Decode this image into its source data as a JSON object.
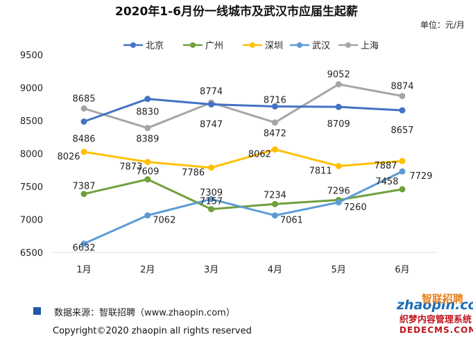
{
  "chart_data": {
    "type": "line",
    "title": "2020年1-6月份一线城市及武汉市应届生起薪",
    "unit": "单位：元/月",
    "categories": [
      "1月",
      "2月",
      "3月",
      "4月",
      "5月",
      "6月"
    ],
    "ylim": [
      6500,
      9500
    ],
    "yticks": [
      6500,
      7000,
      7500,
      8000,
      8500,
      9000,
      9500
    ],
    "grid": false,
    "legend_position": "top",
    "series": [
      {
        "name": "北京",
        "color": "#4472c4",
        "values": [
          8486,
          8830,
          8747,
          8716,
          8709,
          8657
        ]
      },
      {
        "name": "广州",
        "color": "#70a03c",
        "values": [
          7387,
          7609,
          7157,
          7234,
          7296,
          7458
        ]
      },
      {
        "name": "深圳",
        "color": "#ffc000",
        "values": [
          8026,
          7873,
          7786,
          8062,
          7811,
          7887
        ]
      },
      {
        "name": "武汉",
        "color": "#5b9bd5",
        "values": [
          6632,
          7062,
          7309,
          7061,
          7260,
          7729
        ]
      },
      {
        "name": "上海",
        "color": "#a5a5a5",
        "values": [
          8685,
          8389,
          8774,
          8472,
          9052,
          8874
        ]
      }
    ]
  },
  "footer": {
    "source": "数据来源：智联招聘（www.zhaopin.com）",
    "source_marker_color": "#1f5aa6",
    "copyright": "Copyright©2020  zhaopin all rights reserved"
  },
  "logo": {
    "latin": "zhaopin.com",
    "chinese": "智联招聘"
  },
  "watermark": {
    "line1": "织梦内容管理系统",
    "line2": "DEDECMS.COM"
  }
}
